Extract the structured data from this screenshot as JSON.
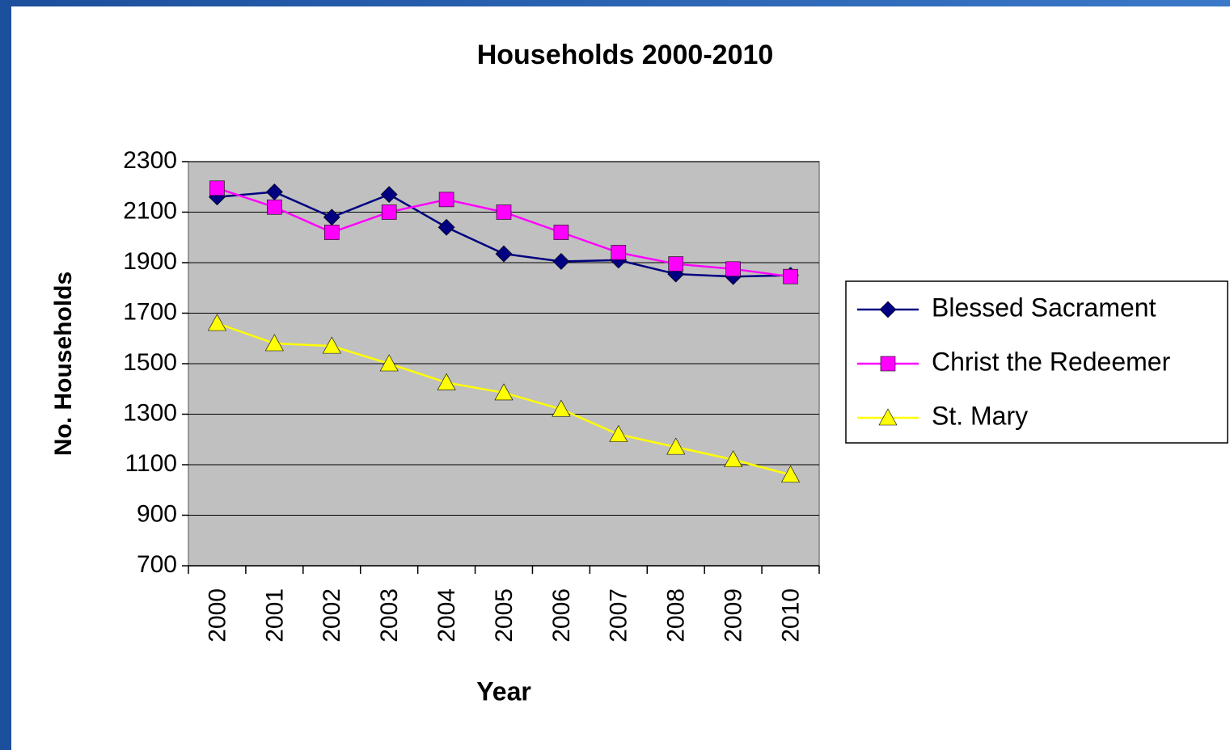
{
  "chart_data": {
    "type": "line",
    "title": "Households 2000-2010",
    "x_label": "Year",
    "y_label": "No. Households",
    "categories": [
      "2000",
      "2001",
      "2002",
      "2003",
      "2004",
      "2005",
      "2006",
      "2007",
      "2008",
      "2009",
      "2010"
    ],
    "series": [
      {
        "name": "Blessed Sacrament",
        "color": "#000080",
        "marker": "diamond",
        "values": [
          2160,
          2180,
          2080,
          2170,
          2040,
          1935,
          1905,
          1910,
          1855,
          1845,
          1850
        ]
      },
      {
        "name": "Christ the Redeemer",
        "color": "#ff00ff",
        "marker": "square",
        "values": [
          2195,
          2120,
          2020,
          2100,
          2150,
          2100,
          2020,
          1940,
          1895,
          1875,
          1845
        ]
      },
      {
        "name": "St. Mary",
        "color": "#ffff00",
        "marker": "triangle",
        "values": [
          1660,
          1580,
          1570,
          1500,
          1425,
          1385,
          1320,
          1220,
          1170,
          1120,
          1060
        ]
      }
    ],
    "ylim": [
      700,
      2300
    ],
    "yticks": [
      700,
      900,
      1100,
      1300,
      1500,
      1700,
      1900,
      2100,
      2300
    ],
    "grid": true,
    "legend": "right"
  }
}
